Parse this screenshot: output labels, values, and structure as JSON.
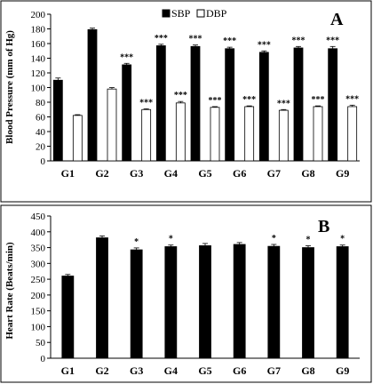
{
  "chart_data": [
    {
      "type": "bar",
      "panel_label": "A",
      "ylabel": "Blood Pressure (mm of Hg)",
      "ylim": [
        0,
        200
      ],
      "yticks": [
        0,
        20,
        40,
        60,
        80,
        100,
        120,
        140,
        160,
        180,
        200
      ],
      "categories": [
        "G1",
        "G2",
        "G3",
        "G4",
        "G5",
        "G6",
        "G7",
        "G8",
        "G9"
      ],
      "legend_position": "top-center",
      "series": [
        {
          "name": "SBP",
          "color": "#000000",
          "values": [
            110,
            179,
            131,
            157,
            156,
            153,
            148,
            154,
            153
          ],
          "errors": [
            3,
            2,
            2,
            2,
            2,
            2,
            2,
            2,
            3
          ],
          "annotations": [
            "",
            "",
            "***",
            "***",
            "***",
            "***",
            "***",
            "***",
            "***"
          ]
        },
        {
          "name": "DBP",
          "color": "#ffffff",
          "values": [
            62,
            98,
            70,
            79,
            73,
            74,
            69,
            74,
            74
          ],
          "errors": [
            1,
            2,
            1,
            2,
            1,
            1,
            1,
            1,
            2
          ],
          "annotations": [
            "",
            "",
            "***",
            "***",
            "***",
            "***",
            "***",
            "***",
            "***"
          ]
        }
      ]
    },
    {
      "type": "bar",
      "panel_label": "B",
      "ylabel": "Heart Rate (Beats/min)",
      "ylim": [
        0,
        450
      ],
      "yticks": [
        0,
        50,
        100,
        150,
        200,
        250,
        300,
        350,
        400,
        450
      ],
      "categories": [
        "G1",
        "G2",
        "G3",
        "G4",
        "G5",
        "G6",
        "G7",
        "G8",
        "G9"
      ],
      "series": [
        {
          "color": "#000000",
          "values": [
            260,
            381,
            343,
            353,
            356,
            360,
            354,
            350,
            353
          ],
          "errors": [
            5,
            6,
            6,
            5,
            7,
            6,
            6,
            6,
            5
          ],
          "annotations": [
            "",
            "",
            "*",
            "*",
            "",
            "",
            "*",
            "*",
            "*"
          ]
        }
      ]
    }
  ]
}
